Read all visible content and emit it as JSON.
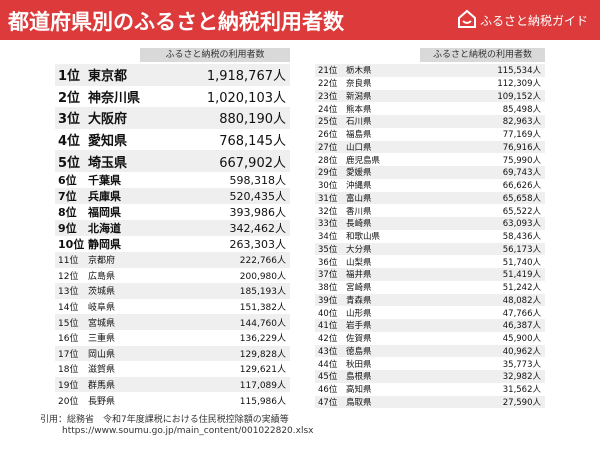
{
  "header": {
    "title": "都道府県別のふるさと納税利用者数",
    "brand": "ふるさと納税ガイド"
  },
  "left": {
    "column": "ふるさと納税の利用者数",
    "rows": [
      [
        "1位",
        "東京都",
        "1,918,767人"
      ],
      [
        "2位",
        "神奈川県",
        "1,020,103人"
      ],
      [
        "3位",
        "大阪府",
        "880,190人"
      ],
      [
        "4位",
        "愛知県",
        "768,145人"
      ],
      [
        "5位",
        "埼玉県",
        "667,902人"
      ],
      [
        "6位",
        "千葉県",
        "598,318人"
      ],
      [
        "7位",
        "兵庫県",
        "520,435人"
      ],
      [
        "8位",
        "福岡県",
        "393,986人"
      ],
      [
        "9位",
        "北海道",
        "342,462人"
      ],
      [
        "10位",
        "静岡県",
        "263,303人"
      ],
      [
        "11位",
        "京都府",
        "222,766人"
      ],
      [
        "12位",
        "広島県",
        "200,980人"
      ],
      [
        "13位",
        "茨城県",
        "185,193人"
      ],
      [
        "14位",
        "岐阜県",
        "151,382人"
      ],
      [
        "15位",
        "宮城県",
        "144,760人"
      ],
      [
        "16位",
        "三重県",
        "136,229人"
      ],
      [
        "17位",
        "岡山県",
        "129,828人"
      ],
      [
        "18位",
        "滋賀県",
        "129,621人"
      ],
      [
        "19位",
        "群馬県",
        "117,089人"
      ],
      [
        "20位",
        "長野県",
        "115,986人"
      ]
    ]
  },
  "right": {
    "column": "ふるさと納税の利用者数",
    "rows": [
      [
        "21位",
        "栃木県",
        "115,534人"
      ],
      [
        "22位",
        "奈良県",
        "112,309人"
      ],
      [
        "23位",
        "新潟県",
        "109,152人"
      ],
      [
        "24位",
        "熊本県",
        "85,498人"
      ],
      [
        "25位",
        "石川県",
        "82,963人"
      ],
      [
        "26位",
        "福島県",
        "77,169人"
      ],
      [
        "27位",
        "山口県",
        "76,916人"
      ],
      [
        "28位",
        "鹿児島県",
        "75,990人"
      ],
      [
        "29位",
        "愛媛県",
        "69,743人"
      ],
      [
        "30位",
        "沖縄県",
        "66,626人"
      ],
      [
        "31位",
        "富山県",
        "65,658人"
      ],
      [
        "32位",
        "香川県",
        "65,522人"
      ],
      [
        "33位",
        "長崎県",
        "63,093人"
      ],
      [
        "34位",
        "和歌山県",
        "58,436人"
      ],
      [
        "35位",
        "大分県",
        "56,173人"
      ],
      [
        "36位",
        "山梨県",
        "51,740人"
      ],
      [
        "37位",
        "福井県",
        "51,419人"
      ],
      [
        "38位",
        "宮崎県",
        "51,242人"
      ],
      [
        "39位",
        "青森県",
        "48,082人"
      ],
      [
        "40位",
        "山形県",
        "47,766人"
      ],
      [
        "41位",
        "岩手県",
        "46,387人"
      ],
      [
        "42位",
        "佐賀県",
        "45,900人"
      ],
      [
        "43位",
        "徳島県",
        "40,962人"
      ],
      [
        "44位",
        "秋田県",
        "35,773人"
      ],
      [
        "45位",
        "島根県",
        "32,982人"
      ],
      [
        "46位",
        "高知県",
        "31,562人"
      ],
      [
        "47位",
        "鳥取県",
        "27,590人"
      ]
    ]
  },
  "footer": {
    "source": "引用：総務省　令和7年度課税における住民税控除額の実績等",
    "url": "https://www.soumu.go.jp/main_content/001022820.xlsx"
  }
}
